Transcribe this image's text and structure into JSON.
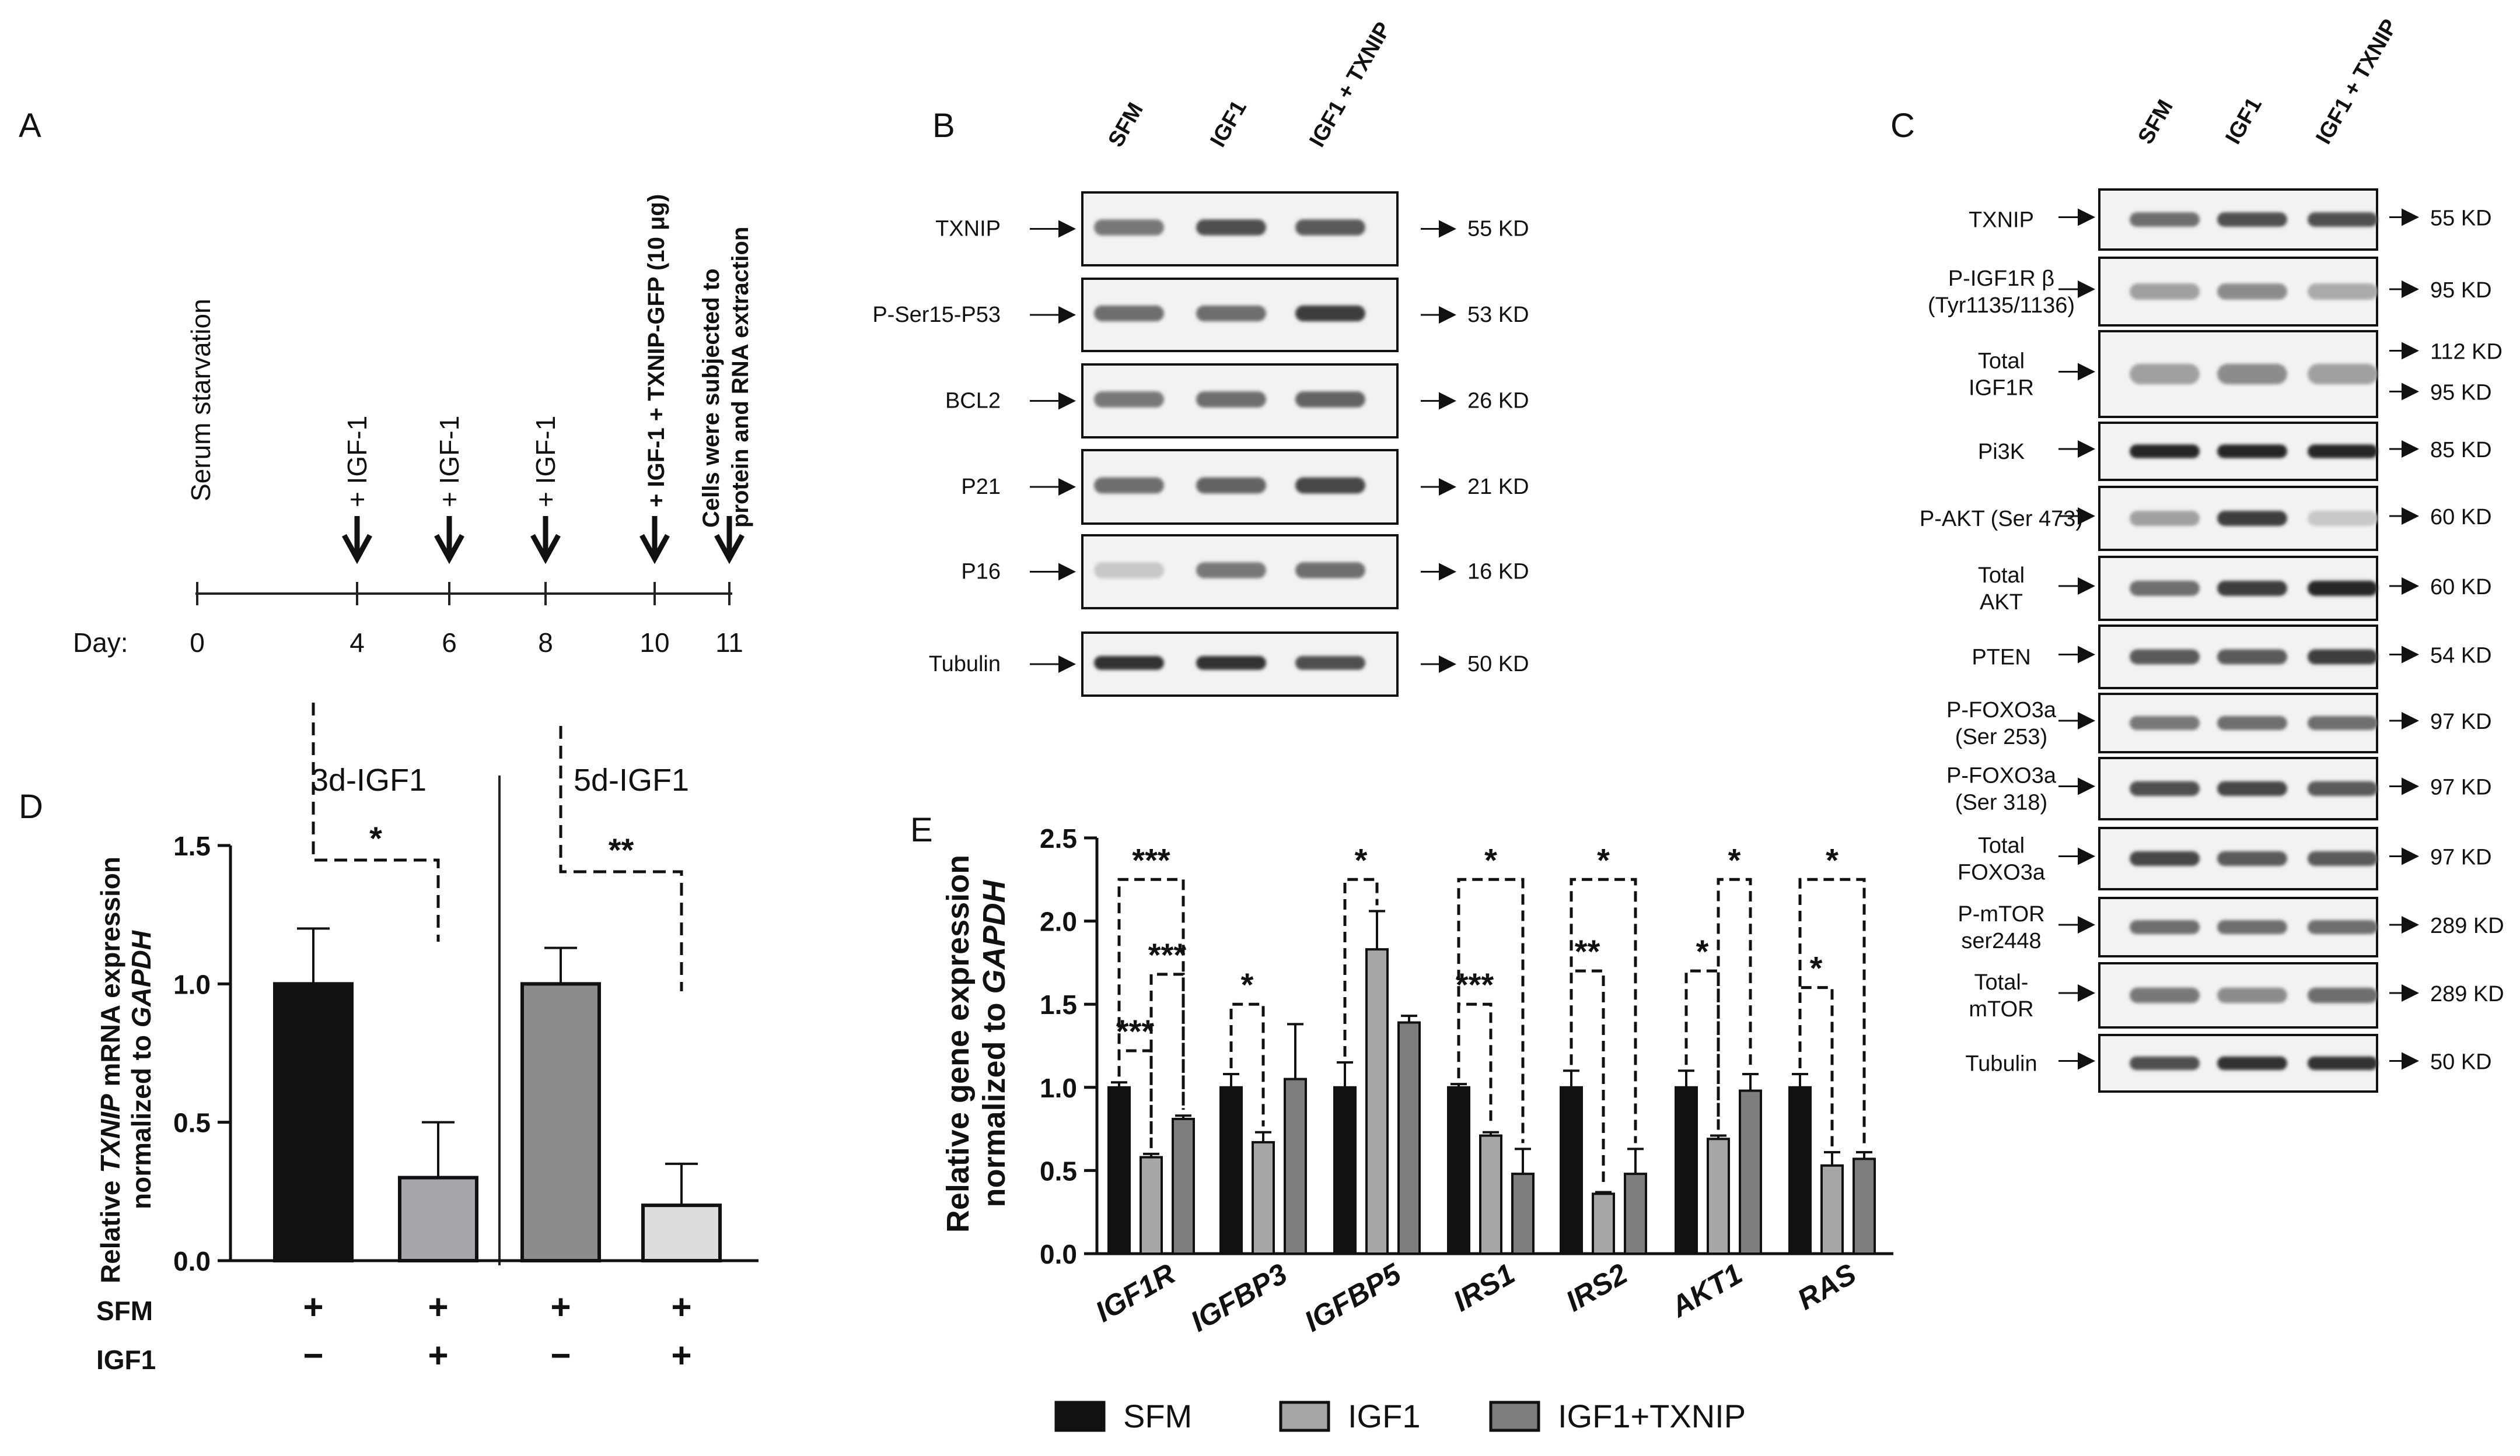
{
  "panels": {
    "A": {
      "label": "A",
      "day_label": "Day:",
      "days": [
        "0",
        "4",
        "6",
        "8",
        "10",
        "11"
      ],
      "events": {
        "serum": "Serum starvation",
        "igf1": "+ IGF-1",
        "igf1_txnip": "+ IGF-1 + TXNIP-GFP (10 μg)",
        "extract_line1": "Cells were subjected to",
        "extract_line2": "protein and RNA extraction"
      }
    },
    "B": {
      "label": "B",
      "lanes": [
        "SFM",
        "IGF1",
        "IGF1 + TXNIP"
      ],
      "rows": [
        {
          "name": "TXNIP",
          "size": "55 KD"
        },
        {
          "name": "P-Ser15-P53",
          "size": "53 KD"
        },
        {
          "name": "BCL2",
          "size": "26 KD"
        },
        {
          "name": "P21",
          "size": "21 KD"
        },
        {
          "name": "P16",
          "size": "16 KD"
        },
        {
          "name": "Tubulin",
          "size": "50 KD"
        }
      ]
    },
    "C": {
      "label": "C",
      "lanes": [
        "SFM",
        "IGF1",
        "IGF1 + TXNIP"
      ],
      "rows": [
        {
          "name": [
            "TXNIP"
          ],
          "size": [
            "55 KD"
          ]
        },
        {
          "name": [
            "P-IGF1R β",
            "(Tyr1135/1136)"
          ],
          "size": [
            "95 KD"
          ]
        },
        {
          "name": [
            "Total",
            "IGF1R"
          ],
          "size": [
            "112 KD",
            "95 KD"
          ]
        },
        {
          "name": [
            "Pi3K"
          ],
          "size": [
            "85 KD"
          ]
        },
        {
          "name": [
            "P-AKT (Ser 473)"
          ],
          "size": [
            "60 KD"
          ]
        },
        {
          "name": [
            "Total",
            "AKT"
          ],
          "size": [
            "60 KD"
          ]
        },
        {
          "name": [
            "PTEN"
          ],
          "size": [
            "54 KD"
          ]
        },
        {
          "name": [
            "P-FOXO3a",
            "(Ser 253)"
          ],
          "size": [
            "97 KD"
          ]
        },
        {
          "name": [
            "P-FOXO3a",
            "(Ser 318)"
          ],
          "size": [
            "97 KD"
          ]
        },
        {
          "name": [
            "Total",
            "FOXO3a"
          ],
          "size": [
            "97 KD"
          ]
        },
        {
          "name": [
            "P-mTOR",
            "ser2448"
          ],
          "size": [
            "289 KD"
          ]
        },
        {
          "name": [
            "Total-",
            "mTOR"
          ],
          "size": [
            "289 KD"
          ]
        },
        {
          "name": [
            "Tubulin"
          ],
          "size": [
            "50 KD"
          ]
        }
      ]
    },
    "D": {
      "label": "D",
      "group_titles": [
        "3d-IGF1",
        "5d-IGF1"
      ],
      "row_labels": [
        "SFM",
        "IGF1"
      ],
      "ylabel_part1": "Relative ",
      "ylabel_italic": "TXNIP",
      "ylabel_part2": " mRNA expression",
      "ylabel_line2a": "normalized to ",
      "ylabel_line2b": "GAPDH",
      "sfm_signs": [
        "+",
        "+",
        "+",
        "+"
      ],
      "igf1_signs": [
        "−",
        "+",
        "−",
        "+"
      ],
      "sig_marks": [
        "*",
        "**"
      ]
    },
    "E": {
      "label": "E",
      "ylabel_line1": "Relative gene expression",
      "ylabel_line2a": "normalized to ",
      "ylabel_line2b": "GAPDH",
      "legend": [
        "SFM",
        "IGF1",
        "IGF1+TXNIP"
      ],
      "sig_marks": {
        "IGF1R": [
          "***",
          "***",
          "***"
        ],
        "IGFBP3": [
          "*"
        ],
        "IGFBP5": [
          "*"
        ],
        "IRS1": [
          "***",
          "*"
        ],
        "IRS2": [
          "**",
          "*"
        ],
        "AKT1": [
          "*",
          "*"
        ],
        "RAS": [
          "*",
          "*"
        ]
      }
    }
  },
  "chart_data": [
    {
      "type": "bar",
      "panel": "D",
      "categories": [
        "SFM (3d)",
        "SFM+IGF1 (3d)",
        "SFM (5d)",
        "SFM+IGF1 (5d)"
      ],
      "values": [
        1.0,
        0.3,
        1.0,
        0.2
      ],
      "errors": [
        0.2,
        0.2,
        0.13,
        0.15
      ],
      "colors": [
        "#111111",
        "#a6a7ab",
        "#8c8c8c",
        "#dcdcdc"
      ],
      "title": "",
      "xlabel": "",
      "ylabel": "Relative TXNIP mRNA expression normalized to GAPDH",
      "ylim": [
        0,
        1.5
      ],
      "yticks": [
        "0.0",
        "0.5",
        "1.0",
        "1.5"
      ]
    },
    {
      "type": "bar",
      "panel": "E",
      "categories": [
        "IGF1R",
        "IGFBP3",
        "IGFBP5",
        "IRS1",
        "IRS2",
        "AKT1",
        "RAS"
      ],
      "series": [
        {
          "name": "SFM",
          "color": "#111111",
          "values": [
            1.0,
            1.0,
            1.0,
            1.0,
            1.0,
            1.0,
            1.0
          ],
          "errors": [
            0.03,
            0.08,
            0.15,
            0.02,
            0.1,
            0.1,
            0.08
          ]
        },
        {
          "name": "IGF1",
          "color": "#a6a6a6",
          "values": [
            0.58,
            0.67,
            1.83,
            0.71,
            0.36,
            0.69,
            0.53
          ],
          "errors": [
            0.02,
            0.06,
            0.23,
            0.02,
            0.01,
            0.02,
            0.08
          ]
        },
        {
          "name": "IGF1+TXNIP",
          "color": "#7d7d7d",
          "values": [
            0.81,
            1.05,
            1.39,
            0.48,
            0.48,
            0.98,
            0.57
          ],
          "errors": [
            0.02,
            0.33,
            0.04,
            0.15,
            0.15,
            0.1,
            0.04
          ]
        }
      ],
      "title": "",
      "xlabel": "",
      "ylabel": "Relative gene expression normalized to GAPDH",
      "ylim": [
        0,
        2.5
      ],
      "yticks": [
        "0.0",
        "0.5",
        "1.0",
        "1.5",
        "2.0",
        "2.5"
      ]
    }
  ]
}
